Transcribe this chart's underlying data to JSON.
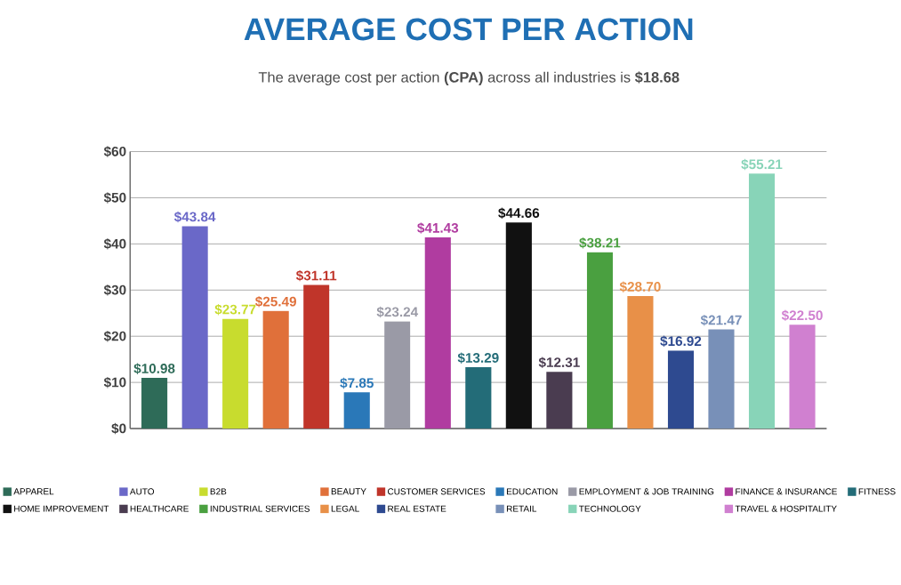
{
  "chart_data": {
    "type": "bar",
    "title": "AVERAGE COST PER ACTION",
    "subtitle": "The average cost per action **(CPA)** across all industries is **$18.68**",
    "categories": [
      null,
      null,
      null,
      null,
      null,
      null,
      null,
      null,
      null,
      null,
      null,
      null,
      null,
      null,
      null,
      null,
      null
    ],
    "series": [
      {
        "name": "APPAREL",
        "color": "#2e6b58",
        "values": [
          10.98,
          null,
          null,
          null,
          null,
          null,
          null,
          null,
          null,
          null,
          null,
          null,
          null,
          null,
          null,
          null,
          null
        ],
        "value_labels": [
          "$10.98",
          null,
          null,
          null,
          null,
          null,
          null,
          null,
          null,
          null,
          null,
          null,
          null,
          null,
          null,
          null,
          null
        ]
      },
      {
        "name": "AUTO",
        "color": "#6a68c8",
        "values": [
          null,
          43.84,
          null,
          null,
          null,
          null,
          null,
          null,
          null,
          null,
          null,
          null,
          null,
          null,
          null,
          null,
          null
        ],
        "value_labels": [
          null,
          "$43.84",
          null,
          null,
          null,
          null,
          null,
          null,
          null,
          null,
          null,
          null,
          null,
          null,
          null,
          null,
          null
        ]
      },
      {
        "name": "B2B",
        "color": "#c8dc2e",
        "values": [
          null,
          null,
          23.77,
          null,
          null,
          null,
          null,
          null,
          null,
          null,
          null,
          null,
          null,
          null,
          null,
          null,
          null
        ],
        "value_labels": [
          null,
          null,
          "$23.77",
          null,
          null,
          null,
          null,
          null,
          null,
          null,
          null,
          null,
          null,
          null,
          null,
          null,
          null
        ]
      },
      {
        "name": "BEAUTY",
        "color": "#e0703a",
        "values": [
          null,
          null,
          null,
          25.49,
          null,
          null,
          null,
          null,
          null,
          null,
          null,
          null,
          null,
          null,
          null,
          null,
          null
        ],
        "value_labels": [
          null,
          null,
          null,
          "$25.49",
          null,
          null,
          null,
          null,
          null,
          null,
          null,
          null,
          null,
          null,
          null,
          null,
          null
        ]
      },
      {
        "name": "CUSTOMER SERVICES",
        "color": "#c0352a",
        "values": [
          null,
          null,
          null,
          null,
          31.11,
          null,
          null,
          null,
          null,
          null,
          null,
          null,
          null,
          null,
          null,
          null,
          null
        ],
        "value_labels": [
          null,
          null,
          null,
          null,
          "$31.11",
          null,
          null,
          null,
          null,
          null,
          null,
          null,
          null,
          null,
          null,
          null,
          null
        ]
      },
      {
        "name": "EDUCATION",
        "color": "#2a78b8",
        "values": [
          null,
          null,
          null,
          null,
          null,
          7.85,
          null,
          null,
          null,
          null,
          null,
          null,
          null,
          null,
          null,
          null,
          null
        ],
        "value_labels": [
          null,
          null,
          null,
          null,
          null,
          "$7.85",
          null,
          null,
          null,
          null,
          null,
          null,
          null,
          null,
          null,
          null,
          null
        ]
      },
      {
        "name": "EMPLOYMENT & JOB TRAINING",
        "color": "#9a9aa6",
        "values": [
          null,
          null,
          null,
          null,
          null,
          null,
          23.24,
          null,
          null,
          null,
          null,
          null,
          null,
          null,
          null,
          null,
          null
        ],
        "value_labels": [
          null,
          null,
          null,
          null,
          null,
          null,
          "$23.24",
          null,
          null,
          null,
          null,
          null,
          null,
          null,
          null,
          null,
          null
        ]
      },
      {
        "name": "FINANCE & INSURANCE",
        "color": "#b03ca0",
        "values": [
          null,
          null,
          null,
          null,
          null,
          null,
          null,
          41.43,
          null,
          null,
          null,
          null,
          null,
          null,
          null,
          null,
          null
        ],
        "value_labels": [
          null,
          null,
          null,
          null,
          null,
          null,
          null,
          "$41.43",
          null,
          null,
          null,
          null,
          null,
          null,
          null,
          null,
          null
        ]
      },
      {
        "name": "FITNESS",
        "color": "#236c78",
        "values": [
          null,
          null,
          null,
          null,
          null,
          null,
          null,
          null,
          13.29,
          null,
          null,
          null,
          null,
          null,
          null,
          null,
          null
        ],
        "value_labels": [
          null,
          null,
          null,
          null,
          null,
          null,
          null,
          null,
          "$13.29",
          null,
          null,
          null,
          null,
          null,
          null,
          null,
          null
        ]
      },
      {
        "name": "HOME IMPROVEMENT",
        "color": "#111111",
        "values": [
          null,
          null,
          null,
          null,
          null,
          null,
          null,
          null,
          null,
          44.66,
          null,
          null,
          null,
          null,
          null,
          null,
          null
        ],
        "value_labels": [
          null,
          null,
          null,
          null,
          null,
          null,
          null,
          null,
          null,
          "$44.66",
          null,
          null,
          null,
          null,
          null,
          null,
          null
        ]
      },
      {
        "name": "HEALTHCARE",
        "color": "#4a3c50",
        "values": [
          null,
          null,
          null,
          null,
          null,
          null,
          null,
          null,
          null,
          null,
          12.31,
          null,
          null,
          null,
          null,
          null,
          null
        ],
        "value_labels": [
          null,
          null,
          null,
          null,
          null,
          null,
          null,
          null,
          null,
          null,
          "$12.31",
          null,
          null,
          null,
          null,
          null,
          null
        ]
      },
      {
        "name": "INDUSTRIAL SERVICES",
        "color": "#4aa040",
        "values": [
          null,
          null,
          null,
          null,
          null,
          null,
          null,
          null,
          null,
          null,
          null,
          38.21,
          null,
          null,
          null,
          null,
          null
        ],
        "value_labels": [
          null,
          null,
          null,
          null,
          null,
          null,
          null,
          null,
          null,
          null,
          null,
          "$38.21",
          null,
          null,
          null,
          null,
          null
        ]
      },
      {
        "name": "LEGAL",
        "color": "#e89048",
        "values": [
          null,
          null,
          null,
          null,
          null,
          null,
          null,
          null,
          null,
          null,
          null,
          null,
          28.7,
          null,
          null,
          null,
          null
        ],
        "value_labels": [
          null,
          null,
          null,
          null,
          null,
          null,
          null,
          null,
          null,
          null,
          null,
          null,
          "$28.70",
          null,
          null,
          null,
          null
        ]
      },
      {
        "name": "REAL ESTATE",
        "color": "#2e4a90",
        "values": [
          null,
          null,
          null,
          null,
          null,
          null,
          null,
          null,
          null,
          null,
          null,
          null,
          null,
          16.92,
          null,
          null,
          null
        ],
        "value_labels": [
          null,
          null,
          null,
          null,
          null,
          null,
          null,
          null,
          null,
          null,
          null,
          null,
          null,
          "$16.92",
          null,
          null,
          null
        ]
      },
      {
        "name": "RETAIL",
        "color": "#7890b8",
        "values": [
          null,
          null,
          null,
          null,
          null,
          null,
          null,
          null,
          null,
          null,
          null,
          null,
          null,
          null,
          21.47,
          null,
          null
        ],
        "value_labels": [
          null,
          null,
          null,
          null,
          null,
          null,
          null,
          null,
          null,
          null,
          null,
          null,
          null,
          null,
          "$21.47",
          null,
          null
        ]
      },
      {
        "name": "TECHNOLOGY",
        "color": "#88d4b8",
        "values": [
          null,
          null,
          null,
          null,
          null,
          null,
          null,
          null,
          null,
          null,
          null,
          null,
          null,
          null,
          null,
          55.21,
          null
        ],
        "value_labels": [
          null,
          null,
          null,
          null,
          null,
          null,
          null,
          null,
          null,
          null,
          null,
          null,
          null,
          null,
          null,
          "$55.21",
          null
        ]
      },
      {
        "name": "TRAVEL & HOSPITALITY",
        "color": "#d080d0",
        "values": [
          null,
          null,
          null,
          null,
          null,
          null,
          null,
          null,
          null,
          null,
          null,
          null,
          null,
          null,
          null,
          null,
          22.5
        ],
        "value_labels": [
          null,
          null,
          null,
          null,
          null,
          null,
          null,
          null,
          null,
          null,
          null,
          null,
          null,
          null,
          null,
          null,
          "$22.50"
        ]
      }
    ],
    "ylim": [
      0,
      60
    ],
    "yticks": [
      {
        "value": 0,
        "label": "$0"
      },
      {
        "value": 10,
        "label": "$10"
      },
      {
        "value": 20,
        "label": "$20"
      },
      {
        "value": 30,
        "label": "$30"
      },
      {
        "value": 40,
        "label": "$40"
      },
      {
        "value": 50,
        "label": "$50"
      },
      {
        "value": 60,
        "label": "$60"
      }
    ],
    "grid": "y",
    "legend": "bottom",
    "tick_labels": "y"
  }
}
